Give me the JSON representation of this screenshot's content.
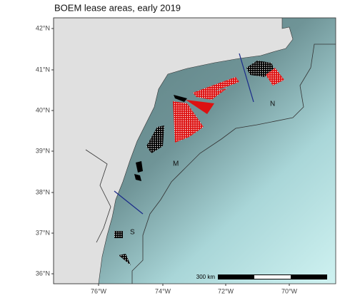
{
  "title": "BOEM lease areas, early 2019",
  "y_axis_labels": [
    "42°N",
    "41°N",
    "40°N",
    "39°N",
    "38°N",
    "37°N",
    "36°N"
  ],
  "x_axis_labels": [
    "76°W",
    "74°W",
    "72°W",
    "70°W"
  ],
  "region_labels": [
    "N",
    "M",
    "S"
  ],
  "scale_bar": "300 km"
}
